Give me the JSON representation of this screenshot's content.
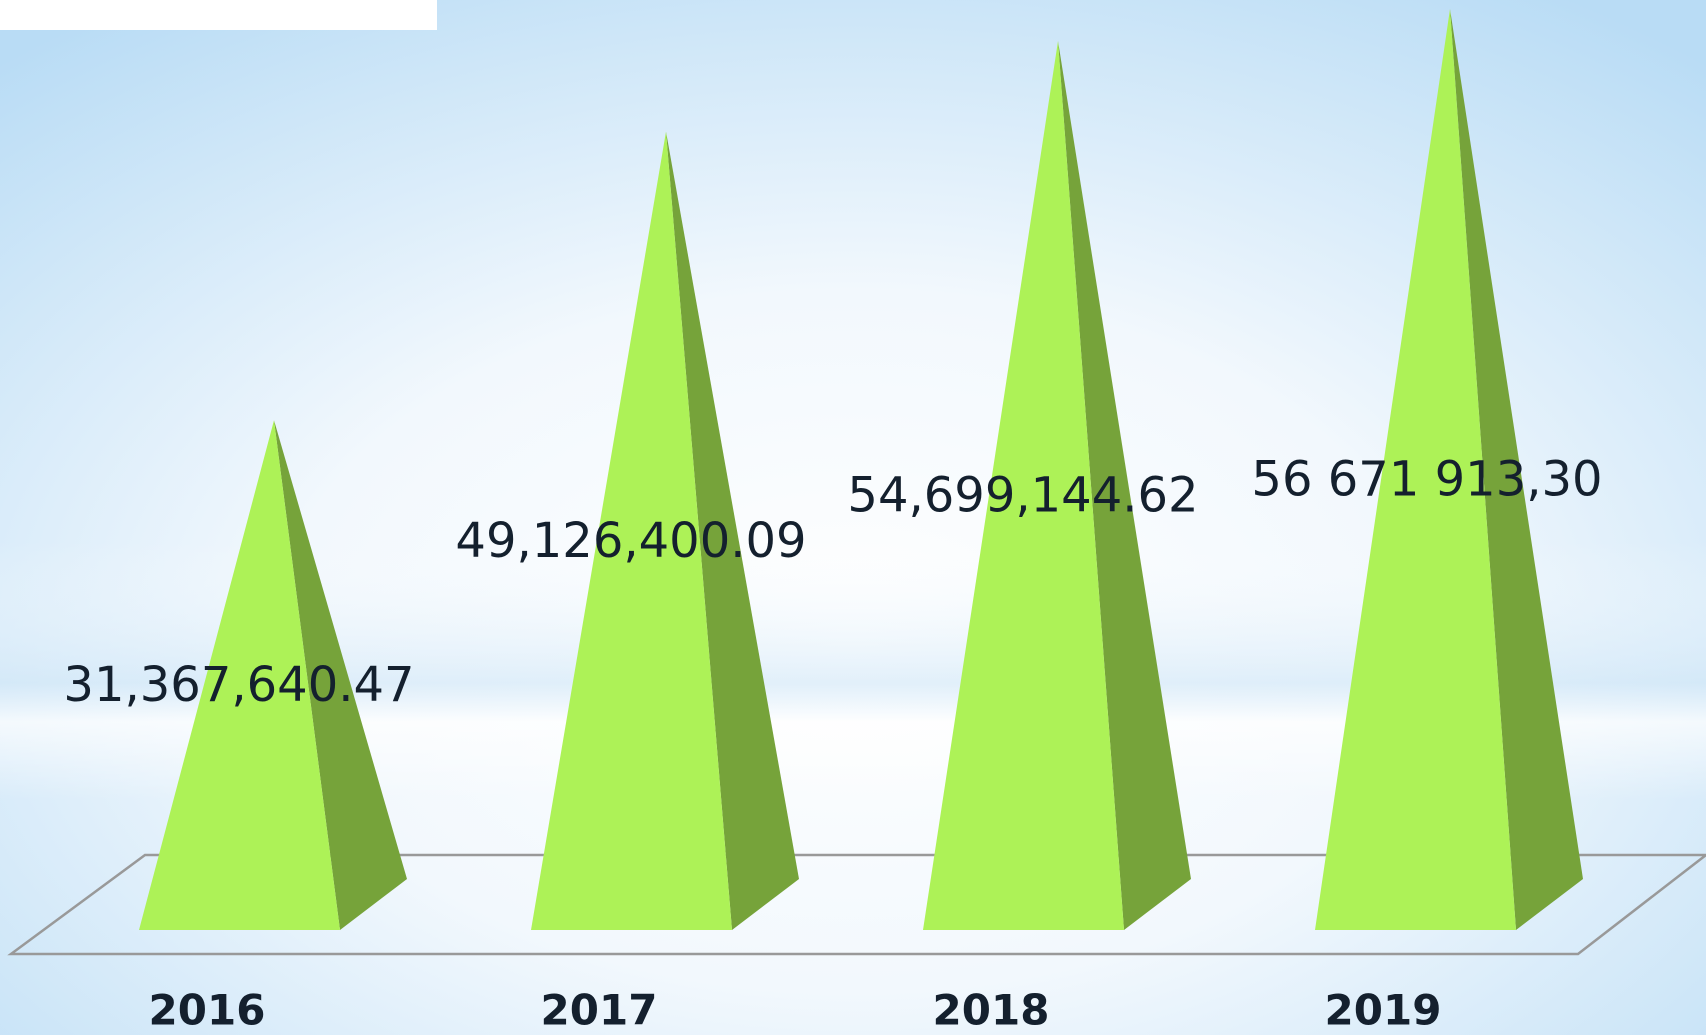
{
  "chart_data": {
    "type": "pyramid",
    "categories": [
      "2016",
      "2017",
      "2018",
      "2019"
    ],
    "values": [
      31367640.47,
      49126400.09,
      54699144.62,
      56671913.3
    ],
    "value_labels": [
      "31,367,640.47",
      "49,126,400.09",
      "54,699,144.62",
      "56 671 913,30"
    ],
    "color": "#adf257",
    "side_color": "#76a33a"
  }
}
